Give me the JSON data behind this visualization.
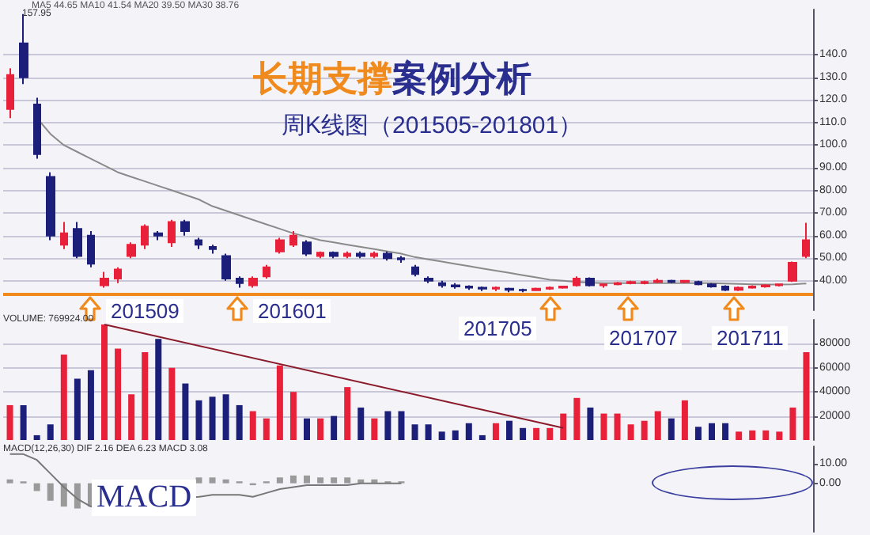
{
  "chart_data": [
    {
      "type": "candlestick",
      "title": "长期支撑案例分析",
      "subtitle": "周K线图（201505-201801）",
      "categories": [
        null,
        null,
        null,
        null,
        null,
        null,
        null,
        null,
        null,
        null,
        null,
        null,
        null,
        null,
        null,
        null,
        null,
        null,
        null,
        null,
        null,
        null,
        null,
        null,
        null,
        null,
        null,
        null,
        null,
        null,
        null,
        null,
        null,
        null,
        null,
        null,
        null,
        null,
        null,
        null,
        null,
        null,
        null,
        null,
        null,
        null,
        null,
        null,
        null,
        null,
        null,
        null,
        null,
        null,
        null,
        null,
        null,
        null,
        null,
        null
      ],
      "ohlc": [
        [
          116,
          134,
          112,
          131
        ],
        [
          145,
          157.95,
          127,
          130
        ],
        [
          118,
          121,
          94,
          96
        ],
        [
          86,
          88,
          58,
          60
        ],
        [
          56,
          66,
          54,
          61
        ],
        [
          63,
          66,
          50,
          51
        ],
        [
          60,
          62,
          46,
          47.6
        ],
        [
          38,
          44,
          37,
          41
        ],
        [
          41,
          46,
          39,
          45
        ],
        [
          51,
          57,
          50,
          56
        ],
        [
          56,
          65,
          54,
          64
        ],
        [
          61,
          62,
          58,
          60
        ],
        [
          57,
          67,
          55,
          66
        ],
        [
          66,
          67,
          60,
          62
        ],
        [
          58,
          59,
          54,
          56
        ],
        [
          55,
          56,
          52,
          54
        ],
        [
          51,
          52,
          40,
          41
        ],
        [
          41,
          42,
          37,
          39
        ],
        [
          38,
          42,
          37,
          41
        ],
        [
          42,
          47,
          41,
          46
        ],
        [
          53,
          59,
          52,
          58
        ],
        [
          56,
          62,
          55,
          60
        ],
        [
          57,
          58,
          51,
          52
        ],
        [
          51,
          53,
          50,
          52.5
        ],
        [
          52.5,
          53,
          50,
          51
        ],
        [
          51,
          53,
          50,
          52
        ],
        [
          52,
          53,
          50,
          51
        ],
        [
          51,
          53,
          50,
          52
        ],
        [
          52,
          53,
          49,
          50
        ],
        [
          50,
          51,
          48,
          49.5
        ],
        [
          46,
          47,
          42,
          43
        ],
        [
          41,
          42,
          39,
          40
        ],
        [
          39,
          40,
          37,
          38
        ],
        [
          38,
          39,
          36.5,
          37.5
        ],
        [
          37.5,
          38,
          36,
          37
        ],
        [
          37,
          37.5,
          35.5,
          36.5
        ],
        [
          36.5,
          37.5,
          35.5,
          37
        ],
        [
          36.5,
          37,
          35,
          36
        ],
        [
          36,
          36.5,
          35,
          35.8
        ],
        [
          35.8,
          37,
          35.5,
          36.5
        ],
        [
          36.5,
          37.5,
          36,
          37
        ],
        [
          37,
          37.5,
          36.5,
          37.5
        ],
        [
          38,
          42,
          37.5,
          41
        ],
        [
          41,
          41.5,
          37.5,
          38
        ],
        [
          38,
          38.5,
          37,
          38.5
        ],
        [
          38.5,
          39.5,
          38,
          39
        ],
        [
          39,
          40,
          38.5,
          39.5
        ],
        [
          39,
          40,
          38.5,
          39.5
        ],
        [
          39.5,
          41,
          39,
          40
        ],
        [
          40,
          40.5,
          39,
          39.5
        ],
        [
          39.5,
          40,
          39,
          40
        ],
        [
          39.5,
          40,
          38,
          38.5
        ],
        [
          38.5,
          39,
          37,
          37.5
        ],
        [
          37.5,
          38,
          35.5,
          36
        ],
        [
          36,
          37.5,
          35.5,
          37
        ],
        [
          37,
          38,
          36.5,
          37.5
        ],
        [
          37.5,
          38.5,
          37,
          38
        ],
        [
          38,
          38.5,
          37.5,
          38.5
        ],
        [
          40,
          48.5,
          39.5,
          48
        ],
        [
          51,
          65.7,
          50,
          58
        ]
      ],
      "colors": [
        "#e8203a",
        "#1c1f7a",
        "#1c1f7a",
        "#1c1f7a",
        "#e8203a",
        "#1c1f7a",
        "#1c1f7a",
        "#e8203a",
        "#e8203a",
        "#e8203a",
        "#e8203a",
        "#1c1f7a",
        "#e8203a",
        "#1c1f7a",
        "#1c1f7a",
        "#1c1f7a",
        "#1c1f7a",
        "#1c1f7a",
        "#e8203a",
        "#e8203a",
        "#e8203a",
        "#e8203a",
        "#1c1f7a",
        "#e8203a",
        "#1c1f7a",
        "#e8203a",
        "#1c1f7a",
        "#e8203a",
        "#1c1f7a",
        "#1c1f7a",
        "#1c1f7a",
        "#1c1f7a",
        "#1c1f7a",
        "#1c1f7a",
        "#1c1f7a",
        "#1c1f7a",
        "#e8203a",
        "#1c1f7a",
        "#1c1f7a",
        "#e8203a",
        "#e8203a",
        "#e8203a",
        "#e8203a",
        "#1c1f7a",
        "#e8203a",
        "#e8203a",
        "#e8203a",
        "#e8203a",
        "#e8203a",
        "#1c1f7a",
        "#e8203a",
        "#1c1f7a",
        "#1c1f7a",
        "#1c1f7a",
        "#e8203a",
        "#e8203a",
        "#e8203a",
        "#e8203a",
        "#e8203a",
        "#e8203a"
      ],
      "series": [
        {
          "type": "line",
          "color": "#8a8a8a",
          "values": [
            null,
            null,
            112,
            105,
            100,
            97,
            94,
            91,
            88,
            86,
            84,
            82,
            80,
            78,
            76,
            73,
            71,
            69,
            67,
            65,
            63,
            61,
            59.5,
            58,
            57,
            56,
            55,
            54,
            53,
            52,
            50.5,
            49.5,
            48.5,
            47.5,
            46.5,
            45.5,
            44.5,
            43.5,
            42.5,
            41.5,
            40.5,
            40,
            39.5,
            39.2,
            39,
            39,
            39,
            39,
            39,
            39,
            39,
            39,
            39,
            38.8,
            38.6,
            38.5,
            38.4,
            38.4,
            38.5,
            38.8
          ]
        }
      ],
      "ylim": [
        27,
        160
      ],
      "yticks": [
        {
          "value": 40,
          "label": "40.00"
        },
        {
          "value": 50,
          "label": "50.00"
        },
        {
          "value": 60,
          "label": "60.00"
        },
        {
          "value": 70,
          "label": "70.00"
        },
        {
          "value": 80,
          "label": "80.00"
        },
        {
          "value": 90,
          "label": "90.00"
        },
        {
          "value": 100,
          "label": "100.0"
        },
        {
          "value": 110,
          "label": "110.0"
        },
        {
          "value": 120,
          "label": "120.0"
        },
        {
          "value": 130,
          "label": "130.0"
        },
        {
          "value": 140,
          "label": "140.0"
        }
      ],
      "grid": "y",
      "ref_lines": [
        {
          "axis": "y",
          "value": 34.4,
          "color": "#f08a1c"
        }
      ],
      "annotations": [
        "MA5 44.65  MA10 41.54  MA20 39.50  MA30 38.76",
        "157.95",
        "201509",
        "201601",
        "201705",
        "201707",
        "201711"
      ]
    },
    {
      "type": "bar",
      "categories": [
        null,
        null,
        null,
        null,
        null,
        null,
        null,
        null,
        null,
        null,
        null,
        null,
        null,
        null,
        null,
        null,
        null,
        null,
        null,
        null,
        null,
        null,
        null,
        null,
        null,
        null,
        null,
        null,
        null,
        null,
        null,
        null,
        null,
        null,
        null,
        null,
        null,
        null,
        null,
        null,
        null,
        null,
        null,
        null,
        null,
        null,
        null,
        null,
        null,
        null,
        null,
        null,
        null,
        null,
        null,
        null,
        null,
        null,
        null,
        null
      ],
      "series": [
        {
          "type": "bar",
          "values": [
            29000,
            29000,
            4000,
            13000,
            71000,
            51000,
            58000,
            96000,
            76000,
            38000,
            73000,
            84000,
            60000,
            47000,
            33000,
            36000,
            38000,
            29000,
            24000,
            18000,
            62000,
            40000,
            18000,
            18000,
            20000,
            44000,
            27000,
            18000,
            24000,
            24000,
            13000,
            13000,
            7000,
            8000,
            14000,
            4000,
            14000,
            16000,
            10000,
            10000,
            10000,
            22000,
            35000,
            27000,
            22000,
            22000,
            13000,
            16000,
            24000,
            18000,
            33000,
            11000,
            14000,
            14000,
            7000,
            8000,
            8000,
            7000,
            27000,
            73000
          ],
          "colors": [
            "#e8203a",
            "#1c1f7a",
            "#1c1f7a",
            "#1c1f7a",
            "#e8203a",
            "#1c1f7a",
            "#1c1f7a",
            "#e8203a",
            "#e8203a",
            "#e8203a",
            "#e8203a",
            "#1c1f7a",
            "#e8203a",
            "#1c1f7a",
            "#1c1f7a",
            "#1c1f7a",
            "#1c1f7a",
            "#1c1f7a",
            "#e8203a",
            "#e8203a",
            "#e8203a",
            "#e8203a",
            "#1c1f7a",
            "#e8203a",
            "#1c1f7a",
            "#e8203a",
            "#1c1f7a",
            "#e8203a",
            "#1c1f7a",
            "#1c1f7a",
            "#1c1f7a",
            "#1c1f7a",
            "#1c1f7a",
            "#1c1f7a",
            "#1c1f7a",
            "#1c1f7a",
            "#e8203a",
            "#1c1f7a",
            "#1c1f7a",
            "#e8203a",
            "#e8203a",
            "#e8203a",
            "#e8203a",
            "#1c1f7a",
            "#e8203a",
            "#e8203a",
            "#e8203a",
            "#e8203a",
            "#e8203a",
            "#1c1f7a",
            "#e8203a",
            "#1c1f7a",
            "#1c1f7a",
            "#1c1f7a",
            "#e8203a",
            "#e8203a",
            "#e8203a",
            "#e8203a",
            "#e8203a",
            "#e8203a"
          ]
        },
        {
          "type": "line",
          "color": "#8b1a2b",
          "values": [
            null,
            null,
            null,
            null,
            null,
            null,
            null,
            96000,
            null,
            null,
            null,
            null,
            null,
            null,
            null,
            null,
            null,
            null,
            null,
            null,
            null,
            null,
            null,
            null,
            null,
            null,
            null,
            null,
            null,
            null,
            null,
            null,
            null,
            null,
            null,
            null,
            null,
            null,
            null,
            null,
            null,
            10000,
            null,
            null,
            null,
            null,
            null,
            null,
            null,
            null,
            null,
            null,
            null,
            null,
            null,
            null,
            null,
            null,
            null,
            null
          ]
        }
      ],
      "ylim": [
        0,
        100000
      ],
      "yticks": [
        20000,
        40000,
        60000,
        80000
      ],
      "grid": "y",
      "annotations": [
        "VOLUME: 769924.00"
      ]
    },
    {
      "type": "bar",
      "categories": [
        null,
        null,
        null,
        null,
        null,
        null,
        null,
        null,
        null,
        null,
        null,
        null,
        null,
        null,
        null,
        null,
        null,
        null,
        null,
        null,
        null,
        null,
        null,
        null,
        null,
        null,
        null,
        null,
        null,
        null,
        null,
        null,
        null,
        null,
        null,
        null,
        null,
        null,
        null,
        null,
        null,
        null,
        null,
        null,
        null,
        null,
        null,
        null,
        null,
        null,
        null,
        null,
        null,
        null,
        null,
        null,
        null,
        null,
        null,
        null
      ],
      "series": [
        {
          "type": "bar",
          "color": "#9a9a9a",
          "values": [
            2,
            1,
            -4,
            -9,
            -12,
            -13,
            -12,
            null,
            null,
            null,
            null,
            null,
            null,
            null,
            3,
            3,
            2,
            1,
            -1,
            1,
            3,
            4,
            4,
            3,
            3,
            3,
            2,
            2,
            1,
            1,
            null,
            null,
            null,
            null,
            null,
            null,
            null,
            null,
            null,
            null,
            null,
            null,
            null,
            null,
            null,
            null,
            null,
            null,
            null,
            null,
            null,
            null,
            null,
            null,
            null,
            null,
            null,
            null,
            null,
            null
          ]
        },
        {
          "type": "line",
          "color": "#777777",
          "values": [
            15,
            15,
            12,
            5,
            -2,
            -8,
            -12,
            null,
            null,
            null,
            null,
            null,
            null,
            null,
            -7,
            -6,
            -6,
            -6,
            -7,
            -5,
            -3,
            -2,
            -1,
            -1,
            -1,
            -1,
            0,
            0,
            0,
            0,
            null,
            null,
            null,
            null,
            null,
            null,
            null,
            null,
            null,
            null,
            null,
            null,
            null,
            null,
            null,
            null,
            null,
            null,
            null,
            null,
            null,
            null,
            null,
            null,
            null,
            null,
            null,
            null,
            null,
            null
          ]
        }
      ],
      "ylim": [
        -25,
        19
      ],
      "yticks": [
        {
          "value": 0,
          "label": "0.00"
        },
        {
          "value": 10,
          "label": "10.00"
        }
      ],
      "annotations": [
        "MACD(12,26,30) DIF 2.16 DEA 6.23 MACD 3.08",
        "MACD"
      ]
    }
  ]
}
